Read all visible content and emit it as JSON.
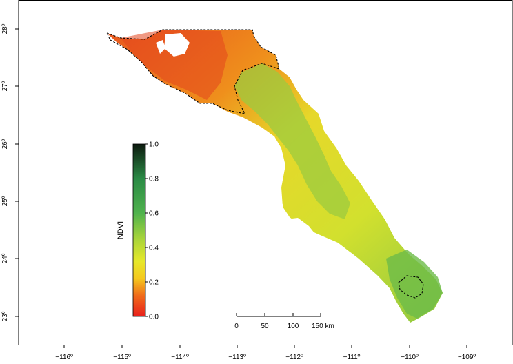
{
  "map": {
    "x_ticks": [
      "−116º",
      "−115º",
      "−114º",
      "−113º",
      "−112º",
      "−111º",
      "−110º",
      "−109º"
    ],
    "y_ticks": [
      "23º",
      "24º",
      "25º",
      "26º",
      "27º",
      "28º"
    ]
  },
  "legend": {
    "title": "NDVI",
    "ticks": [
      "0.0",
      "0.2",
      "0.4",
      "0.6",
      "0.8",
      "1.0"
    ],
    "colors": [
      "#e8201c",
      "#f08a18",
      "#f5e11d",
      "#b5d62f",
      "#56b34a",
      "#1f7a3a",
      "#0d2b14"
    ]
  },
  "scale_bar": {
    "labels": [
      "0",
      "50",
      "100",
      "150 km"
    ]
  },
  "colors": {
    "low": "#e8551e",
    "mid_low": "#f0a21c",
    "mid": "#e8e02a",
    "mid_high": "#a9d13a",
    "high": "#5fb345"
  }
}
